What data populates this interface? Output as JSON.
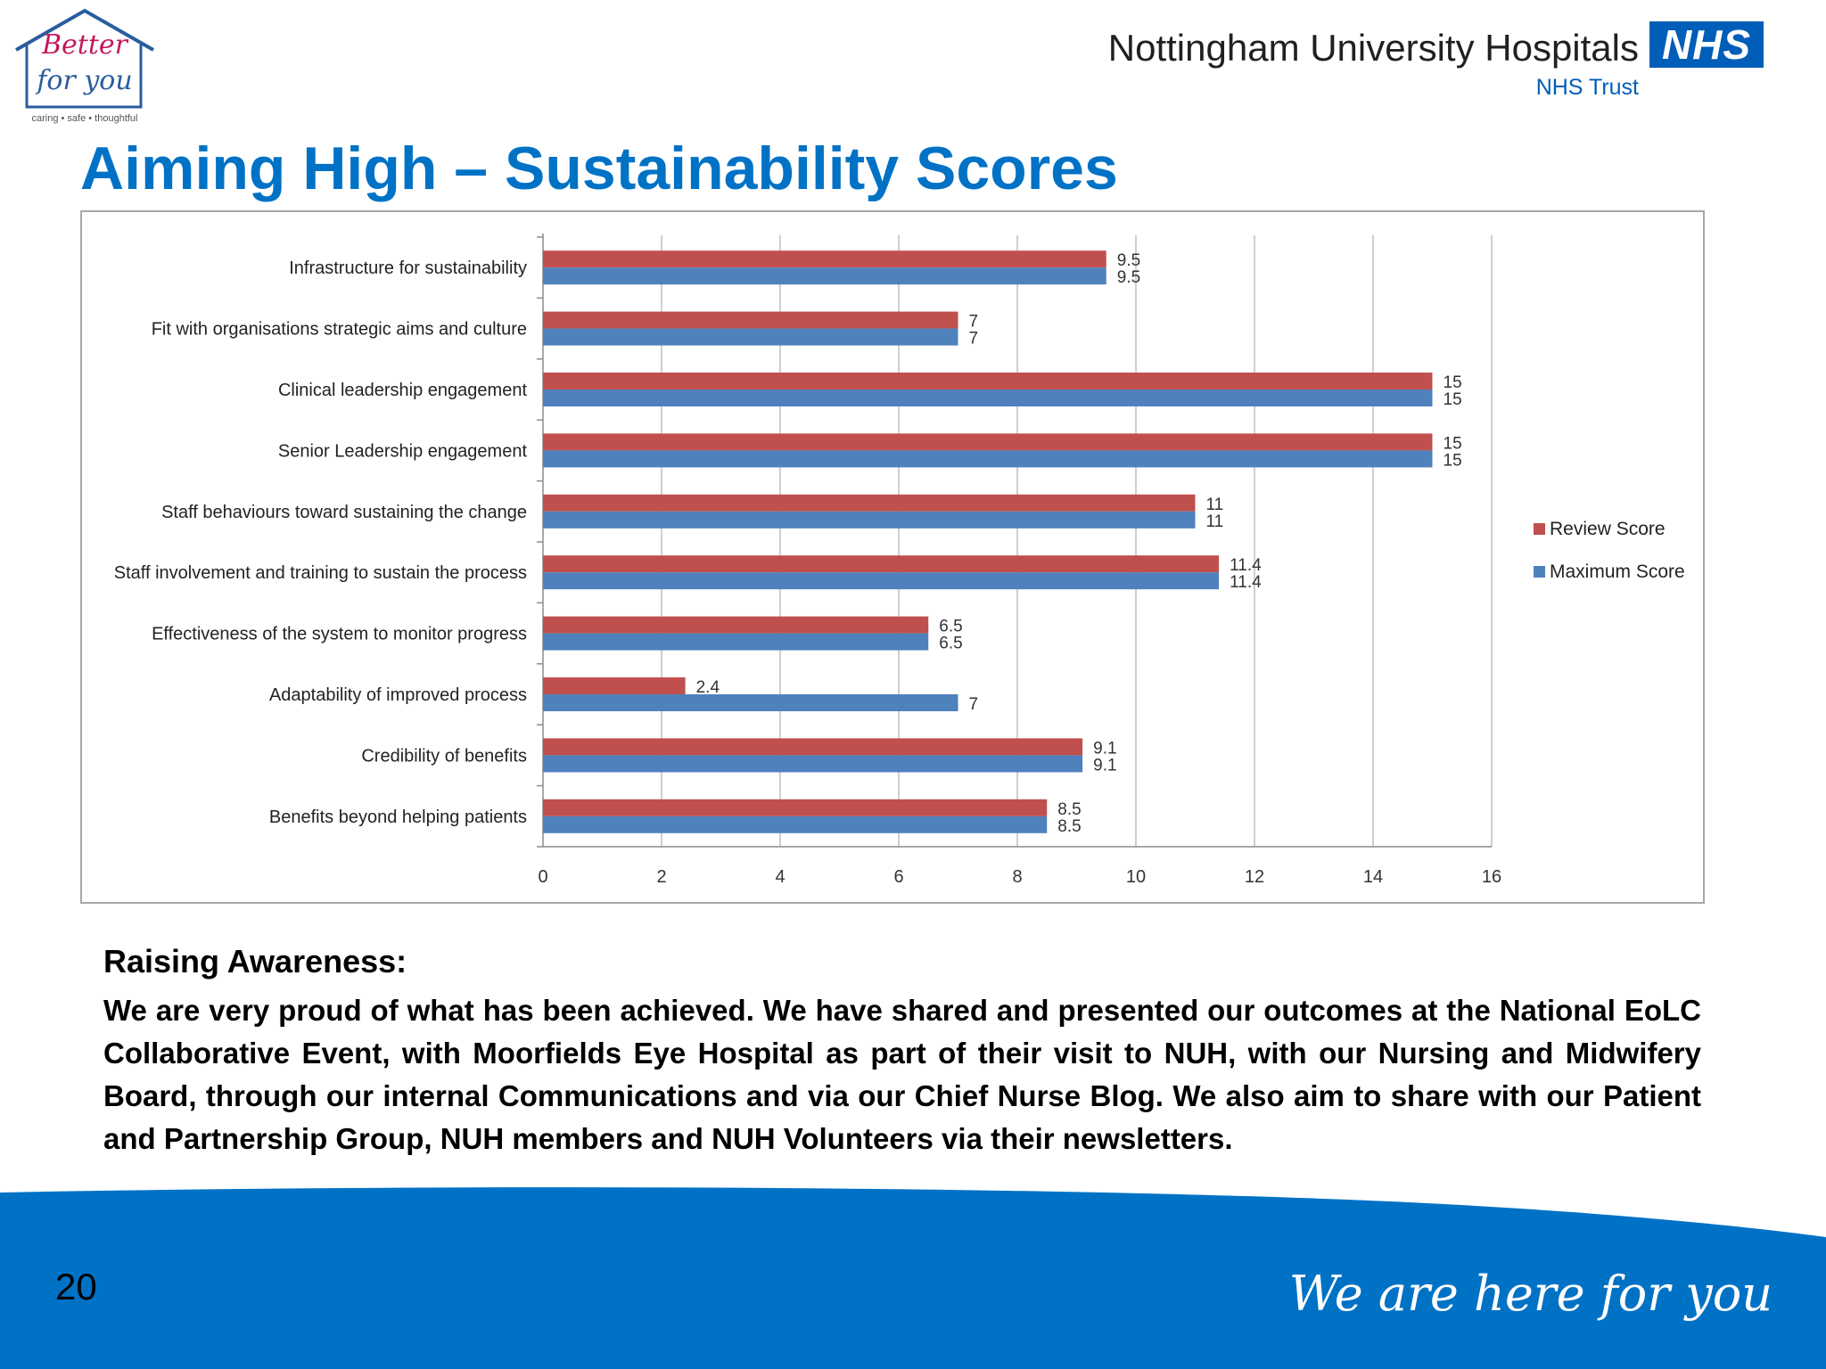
{
  "logo": {
    "line1": "Better",
    "line2": "for you",
    "strapline": "caring • safe • thoughtful"
  },
  "org": {
    "name": "Nottingham University Hospitals",
    "badge": "NHS",
    "trust": "NHS Trust"
  },
  "title": "Aiming High – Sustainability Scores",
  "chart_data": {
    "type": "bar",
    "orientation": "horizontal",
    "categories": [
      "Infrastructure for sustainability",
      "Fit with organisations strategic aims and culture",
      "Clinical leadership engagement",
      "Senior Leadership engagement",
      "Staff behaviours toward sustaining the change",
      "Staff involvement and training to sustain the process",
      "Effectiveness of the system to monitor progress",
      "Adaptability of improved process",
      "Credibility of benefits",
      "Benefits beyond helping patients"
    ],
    "series": [
      {
        "name": "Review Score",
        "color": "#c0504d",
        "values": [
          9.5,
          7,
          15,
          15,
          11,
          11.4,
          6.5,
          2.4,
          9.1,
          8.5
        ]
      },
      {
        "name": "Maximum Score",
        "color": "#4f81bd",
        "values": [
          9.5,
          7,
          15,
          15,
          11,
          11.4,
          6.5,
          7,
          9.1,
          8.5
        ]
      }
    ],
    "xlim": [
      0,
      16
    ],
    "xticks": [
      0,
      2,
      4,
      6,
      8,
      10,
      12,
      14,
      16
    ],
    "grid": true,
    "legend_position": "right"
  },
  "awareness": {
    "heading": "Raising Awareness:",
    "body": "We are very proud of what has been achieved.  We have shared and presented our outcomes at the National EoLC Collaborative Event, with Moorfields Eye Hospital as part of their visit to NUH, with our Nursing and Midwifery Board, through our internal Communications and via our Chief Nurse Blog.  We also aim to share with our Patient and Partnership Group, NUH members and NUH Volunteers via their newsletters."
  },
  "footer": {
    "page_number": "20",
    "tagline": "We are here for you",
    "color": "#0072c6"
  }
}
